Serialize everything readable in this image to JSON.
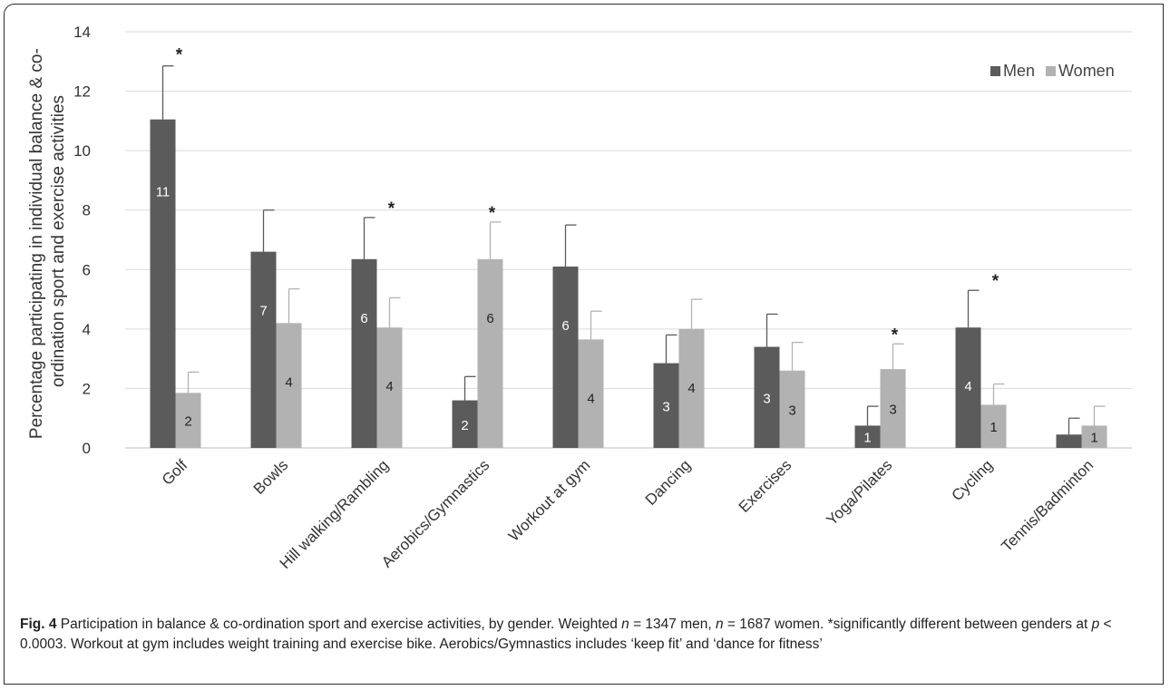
{
  "chart_data": {
    "type": "bar",
    "ylabel_lines": [
      "Percentage participating in individual balance & co-",
      "ordination sport and exercise activities"
    ],
    "ylim": [
      0,
      14
    ],
    "yticks": [
      0,
      2,
      4,
      6,
      8,
      10,
      12,
      14
    ],
    "grid": true,
    "legend_position": "top-right",
    "categories": [
      "Golf",
      "Bowls",
      "Hill walking/Rambling",
      "Aerobics/Gymnastics",
      "Workout at gym",
      "Dancing",
      "Exercises",
      "Yoga/Pilates",
      "Cycling",
      "Tennis/Badminton"
    ],
    "series": [
      {
        "name": "Men",
        "color": "#5b5b5b",
        "values": [
          11.05,
          6.6,
          6.35,
          1.6,
          6.1,
          2.85,
          3.4,
          0.75,
          4.05,
          0.45
        ],
        "error_upper": [
          12.85,
          8.0,
          7.75,
          2.4,
          7.5,
          3.8,
          4.5,
          1.4,
          5.3,
          1.0
        ],
        "labels": [
          "11",
          "7",
          "6",
          "2",
          "6",
          "3",
          "3",
          "1",
          "4",
          ""
        ]
      },
      {
        "name": "Women",
        "color": "#b2b2b2",
        "values": [
          1.85,
          4.2,
          4.05,
          6.35,
          3.65,
          4.0,
          2.6,
          2.65,
          1.45,
          0.75
        ],
        "error_upper": [
          2.55,
          5.35,
          5.05,
          7.6,
          4.6,
          5.0,
          3.55,
          3.5,
          2.15,
          1.4
        ],
        "labels": [
          "2",
          "4",
          "4",
          "6",
          "4",
          "4",
          "3",
          "3",
          "1",
          "1"
        ]
      }
    ],
    "significance_marker": "*",
    "significant_categories": [
      "Golf",
      "Hill walking/Rambling",
      "Aerobics/Gymnastics",
      "Yoga/Pilates",
      "Cycling"
    ]
  },
  "caption": {
    "figure": "Fig. 4",
    "text_a": " Participation in balance & co-ordination sport and exercise activities, by gender. Weighted ",
    "n1": "n",
    "text_b": " = 1347 men, ",
    "n2": "n",
    "text_c": " = 1687 women. *significantly different between genders at ",
    "p": "p",
    "text_d": " < 0.0003. Workout at gym includes weight training and exercise bike. Aerobics/Gymnastics includes ‘keep fit’ and ‘dance for fitness’"
  }
}
